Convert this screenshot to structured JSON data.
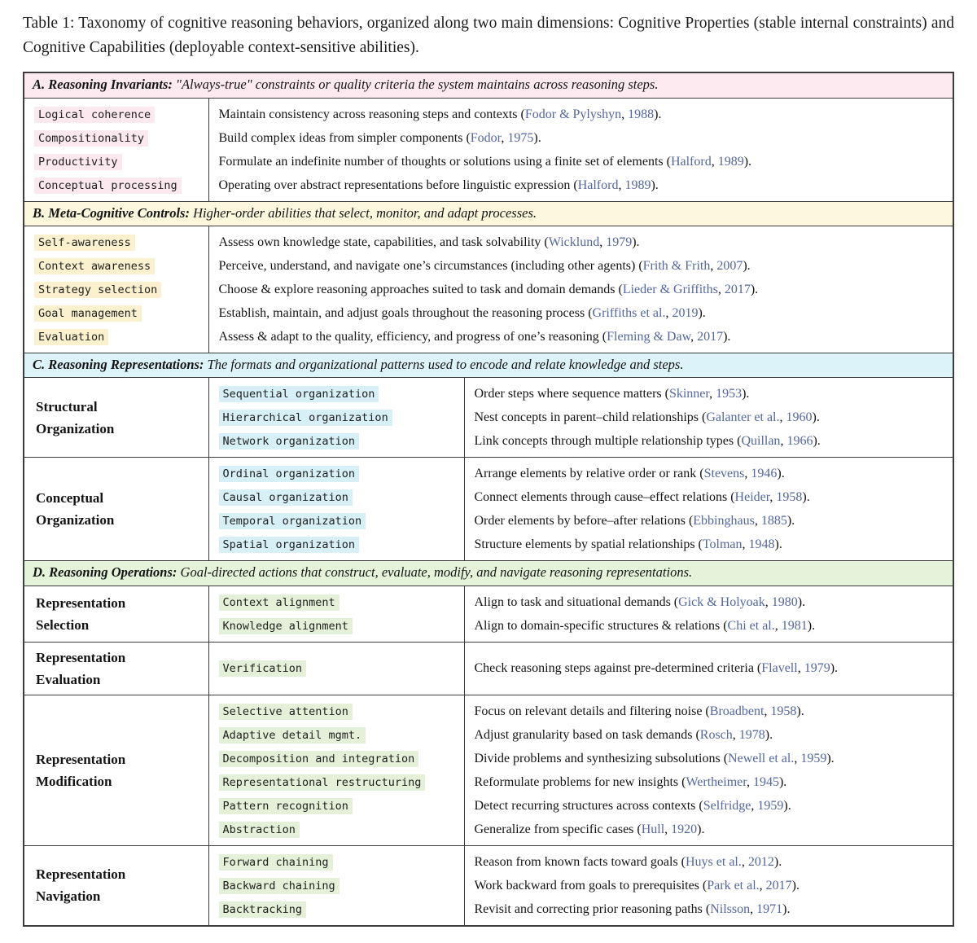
{
  "meta": {
    "cite_sep": ", "
  },
  "caption": "Table 1: Taxonomy of cognitive reasoning behaviors, organized along two main dimensions: Cognitive Properties (stable internal constraints) and Cognitive Capabilities (deployable context-sensitive abilities).",
  "colors": {
    "citation": "#54679e",
    "border": "#3c3c3c"
  },
  "sections": [
    {
      "id": "A",
      "title": "A. Reasoning Invariants:",
      "subtitle": "\"Always-true\" constraints or quality criteria the system maintains across reasoning steps.",
      "columns": 2,
      "colors": {
        "band": "#fdeaf0",
        "highlight": "#fce8ef"
      },
      "groups": [
        {
          "name": null,
          "rows": [
            {
              "label": "Logical coherence",
              "pre": "Maintain consistency across reasoning steps and contexts (",
              "authors": "Fodor & Pylyshyn",
              "year": "1988",
              "post": ")."
            },
            {
              "label": "Compositionality",
              "pre": "Build complex ideas from simpler components (",
              "authors": "Fodor",
              "year": "1975",
              "post": ")."
            },
            {
              "label": "Productivity",
              "pre": "Formulate an indefinite number of thoughts or solutions using a finite set of elements (",
              "authors": "Halford",
              "year": "1989",
              "post": ")."
            },
            {
              "label": "Conceptual processing",
              "pre": "Operating over abstract representations before linguistic expression (",
              "authors": "Halford",
              "year": "1989",
              "post": ")."
            }
          ]
        }
      ]
    },
    {
      "id": "B",
      "title": "B. Meta-Cognitive Controls:",
      "subtitle": "Higher-order abilities that select, monitor, and adapt processes.",
      "columns": 2,
      "colors": {
        "band": "#fdf7dd",
        "highlight": "#fcf1cf"
      },
      "groups": [
        {
          "name": null,
          "rows": [
            {
              "label": "Self-awareness",
              "pre": "Assess own knowledge state, capabilities, and task solvability (",
              "authors": "Wicklund",
              "year": "1979",
              "post": ")."
            },
            {
              "label": "Context awareness",
              "pre": "Perceive, understand, and navigate one’s circumstances (including other agents) (",
              "authors": "Frith & Frith",
              "year": "2007",
              "post": ")."
            },
            {
              "label": "Strategy selection",
              "pre": "Choose & explore reasoning approaches suited to task and domain demands (",
              "authors": "Lieder & Griffiths",
              "year": "2017",
              "post": ")."
            },
            {
              "label": "Goal management",
              "pre": "Establish, maintain, and adjust goals throughout the reasoning process (",
              "authors": "Griffiths et al.",
              "year": "2019",
              "post": ")."
            },
            {
              "label": "Evaluation",
              "pre": "Assess & adapt to the quality, efficiency, and progress of one’s reasoning (",
              "authors": "Fleming & Daw",
              "year": "2017",
              "post": ")."
            }
          ]
        }
      ]
    },
    {
      "id": "C",
      "title": "C. Reasoning Representations:",
      "subtitle": "The formats and organizational patterns used to encode and relate knowledge and steps.",
      "columns": 3,
      "colors": {
        "band": "#ddf3fa",
        "highlight": "#d7f0f8"
      },
      "groups": [
        {
          "name": "Structural\nOrganization",
          "rows": [
            {
              "label": "Sequential organization",
              "pre": "Order steps where sequence matters (",
              "authors": "Skinner",
              "year": "1953",
              "post": ")."
            },
            {
              "label": "Hierarchical organization",
              "pre": "Nest concepts in parent–child relationships (",
              "authors": "Galanter et al.",
              "year": "1960",
              "post": ")."
            },
            {
              "label": "Network organization",
              "pre": "Link concepts through multiple relationship types (",
              "authors": "Quillan",
              "year": "1966",
              "post": ")."
            }
          ]
        },
        {
          "name": "Conceptual\nOrganization",
          "rows": [
            {
              "label": "Ordinal organization",
              "pre": "Arrange elements by relative order or rank (",
              "authors": "Stevens",
              "year": "1946",
              "post": ")."
            },
            {
              "label": "Causal organization",
              "pre": "Connect elements through cause–effect relations (",
              "authors": "Heider",
              "year": "1958",
              "post": ")."
            },
            {
              "label": "Temporal organization",
              "pre": "Order elements by before–after relations (",
              "authors": "Ebbinghaus",
              "year": "1885",
              "post": ")."
            },
            {
              "label": "Spatial organization",
              "pre": "Structure elements by spatial relationships (",
              "authors": "Tolman",
              "year": "1948",
              "post": ")."
            }
          ]
        }
      ]
    },
    {
      "id": "D",
      "title": "D. Reasoning Operations:",
      "subtitle": "Goal-directed actions that construct, evaluate, modify, and navigate reasoning representations.",
      "columns": 3,
      "colors": {
        "band": "#e5f3db",
        "highlight": "#e4f1d8"
      },
      "groups": [
        {
          "name": "Representation\nSelection",
          "rows": [
            {
              "label": "Context alignment",
              "pre": "Align to task and situational demands (",
              "authors": "Gick & Holyoak",
              "year": "1980",
              "post": ")."
            },
            {
              "label": "Knowledge alignment",
              "pre": "Align to domain-specific structures & relations (",
              "authors": "Chi et al.",
              "year": "1981",
              "post": ")."
            }
          ]
        },
        {
          "name": "Representation\nEvaluation",
          "rows": [
            {
              "label": "Verification",
              "pre": "Check reasoning steps against pre-determined criteria (",
              "authors": "Flavell",
              "year": "1979",
              "post": ")."
            }
          ]
        },
        {
          "name": "Representation\nModification",
          "rows": [
            {
              "label": "Selective attention",
              "pre": "Focus on relevant details and filtering noise (",
              "authors": "Broadbent",
              "year": "1958",
              "post": ")."
            },
            {
              "label": "Adaptive detail mgmt.",
              "pre": "Adjust granularity based on task demands (",
              "authors": "Rosch",
              "year": "1978",
              "post": ")."
            },
            {
              "label": "Decomposition and integration",
              "pre": "Divide problems and synthesizing subsolutions (",
              "authors": "Newell et al.",
              "year": "1959",
              "post": ")."
            },
            {
              "label": "Representational restructuring",
              "pre": "Reformulate problems for new insights (",
              "authors": "Wertheimer",
              "year": "1945",
              "post": ")."
            },
            {
              "label": "Pattern recognition",
              "pre": "Detect recurring structures across contexts (",
              "authors": "Selfridge",
              "year": "1959",
              "post": ")."
            },
            {
              "label": "Abstraction",
              "pre": "Generalize from specific cases (",
              "authors": "Hull",
              "year": "1920",
              "post": ")."
            }
          ]
        },
        {
          "name": "Representation\nNavigation",
          "rows": [
            {
              "label": "Forward chaining",
              "pre": "Reason from known facts toward goals (",
              "authors": "Huys et al.",
              "year": "2012",
              "post": ")."
            },
            {
              "label": "Backward chaining",
              "pre": "Work backward from goals to prerequisites (",
              "authors": "Park et al.",
              "year": "2017",
              "post": ")."
            },
            {
              "label": "Backtracking",
              "pre": "Revisit and correcting prior reasoning paths (",
              "authors": "Nilsson",
              "year": "1971",
              "post": ")."
            }
          ]
        }
      ]
    }
  ]
}
